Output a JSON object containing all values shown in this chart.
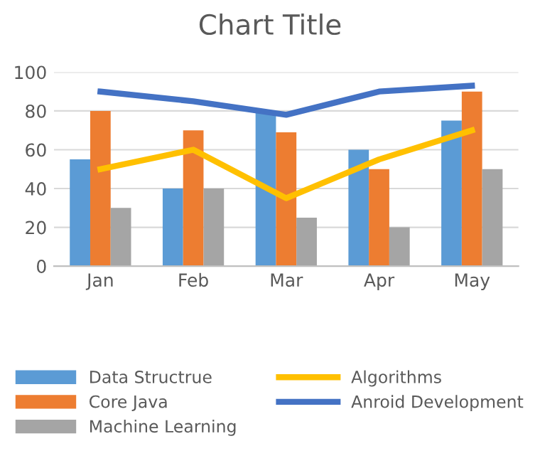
{
  "chart_data": {
    "type": "bar",
    "title": "Chart Title",
    "categories": [
      "Jan",
      "Feb",
      "Mar",
      "Apr",
      "May"
    ],
    "series": [
      {
        "name": "Data Structrue",
        "color": "#5b9bd5",
        "values": [
          55,
          40,
          80,
          60,
          75
        ]
      },
      {
        "name": "Core Java",
        "color": "#ed7d31",
        "values": [
          80,
          70,
          69,
          50,
          90
        ]
      },
      {
        "name": "Machine Learning",
        "color": "#a5a5a5",
        "values": [
          30,
          40,
          25,
          20,
          50
        ]
      },
      {
        "name": "Algorithms",
        "type": "line",
        "color": "#ffc000",
        "values": [
          50,
          60,
          35,
          55,
          70
        ]
      },
      {
        "name": "Anroid Development",
        "type": "line",
        "color": "#4472c4",
        "values": [
          90,
          85,
          78,
          90,
          93
        ]
      }
    ],
    "ylim": [
      0,
      100
    ],
    "yticks": [
      0,
      20,
      40,
      60,
      80,
      100
    ],
    "grid": "y",
    "legend": "bottom"
  }
}
